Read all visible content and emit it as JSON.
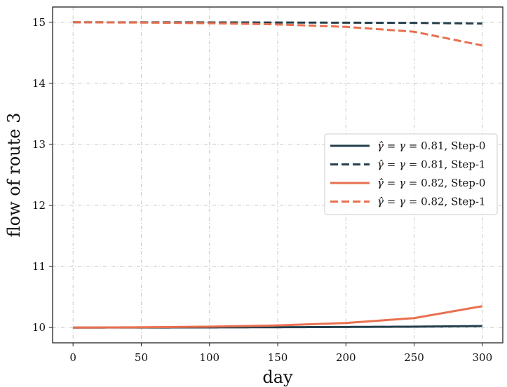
{
  "chart_data": {
    "type": "line",
    "xlabel": "day",
    "ylabel": "flow of route 3",
    "xlim": [
      -15,
      315
    ],
    "ylim": [
      9.75,
      15.25
    ],
    "xticks": [
      0,
      50,
      100,
      150,
      200,
      250,
      300
    ],
    "yticks": [
      10,
      11,
      12,
      13,
      14,
      15
    ],
    "xtick_labels": [
      "0",
      "50",
      "100",
      "150",
      "200",
      "250",
      "300"
    ],
    "ytick_labels": [
      "10",
      "11",
      "12",
      "13",
      "14",
      "15"
    ],
    "grid": true,
    "legend_position": "center-right",
    "x": [
      0,
      50,
      100,
      150,
      200,
      250,
      300
    ],
    "series": [
      {
        "name": "γ̂ = γ = 0.81, Step-0",
        "sym": "γ̂ = γ = ",
        "val": "0.81, Step-0",
        "color": "#243f4d",
        "dash": "solid",
        "values": [
          10.0,
          10.001,
          10.003,
          10.006,
          10.01,
          10.015,
          10.025
        ]
      },
      {
        "name": "γ̂ = γ = 0.81, Step-1",
        "sym": "γ̂ = γ = ",
        "val": "0.81, Step-1",
        "color": "#243f4d",
        "dash": "dashed",
        "values": [
          15.0,
          14.999,
          14.998,
          14.996,
          14.993,
          14.99,
          14.98
        ]
      },
      {
        "name": "γ̂ = γ = 0.82, Step-0",
        "sym": "γ̂ = γ = ",
        "val": "0.82, Step-0",
        "color": "#e8704f",
        "dash": "solid",
        "values": [
          10.0,
          10.005,
          10.015,
          10.035,
          10.075,
          10.155,
          10.35
        ]
      },
      {
        "name": "γ̂ = γ = 0.82, Step-1",
        "sym": "γ̂ = γ = ",
        "val": "0.82, Step-1",
        "color": "#e8704f",
        "dash": "dashed",
        "values": [
          15.0,
          14.995,
          14.985,
          14.965,
          14.925,
          14.845,
          14.62
        ]
      }
    ]
  }
}
